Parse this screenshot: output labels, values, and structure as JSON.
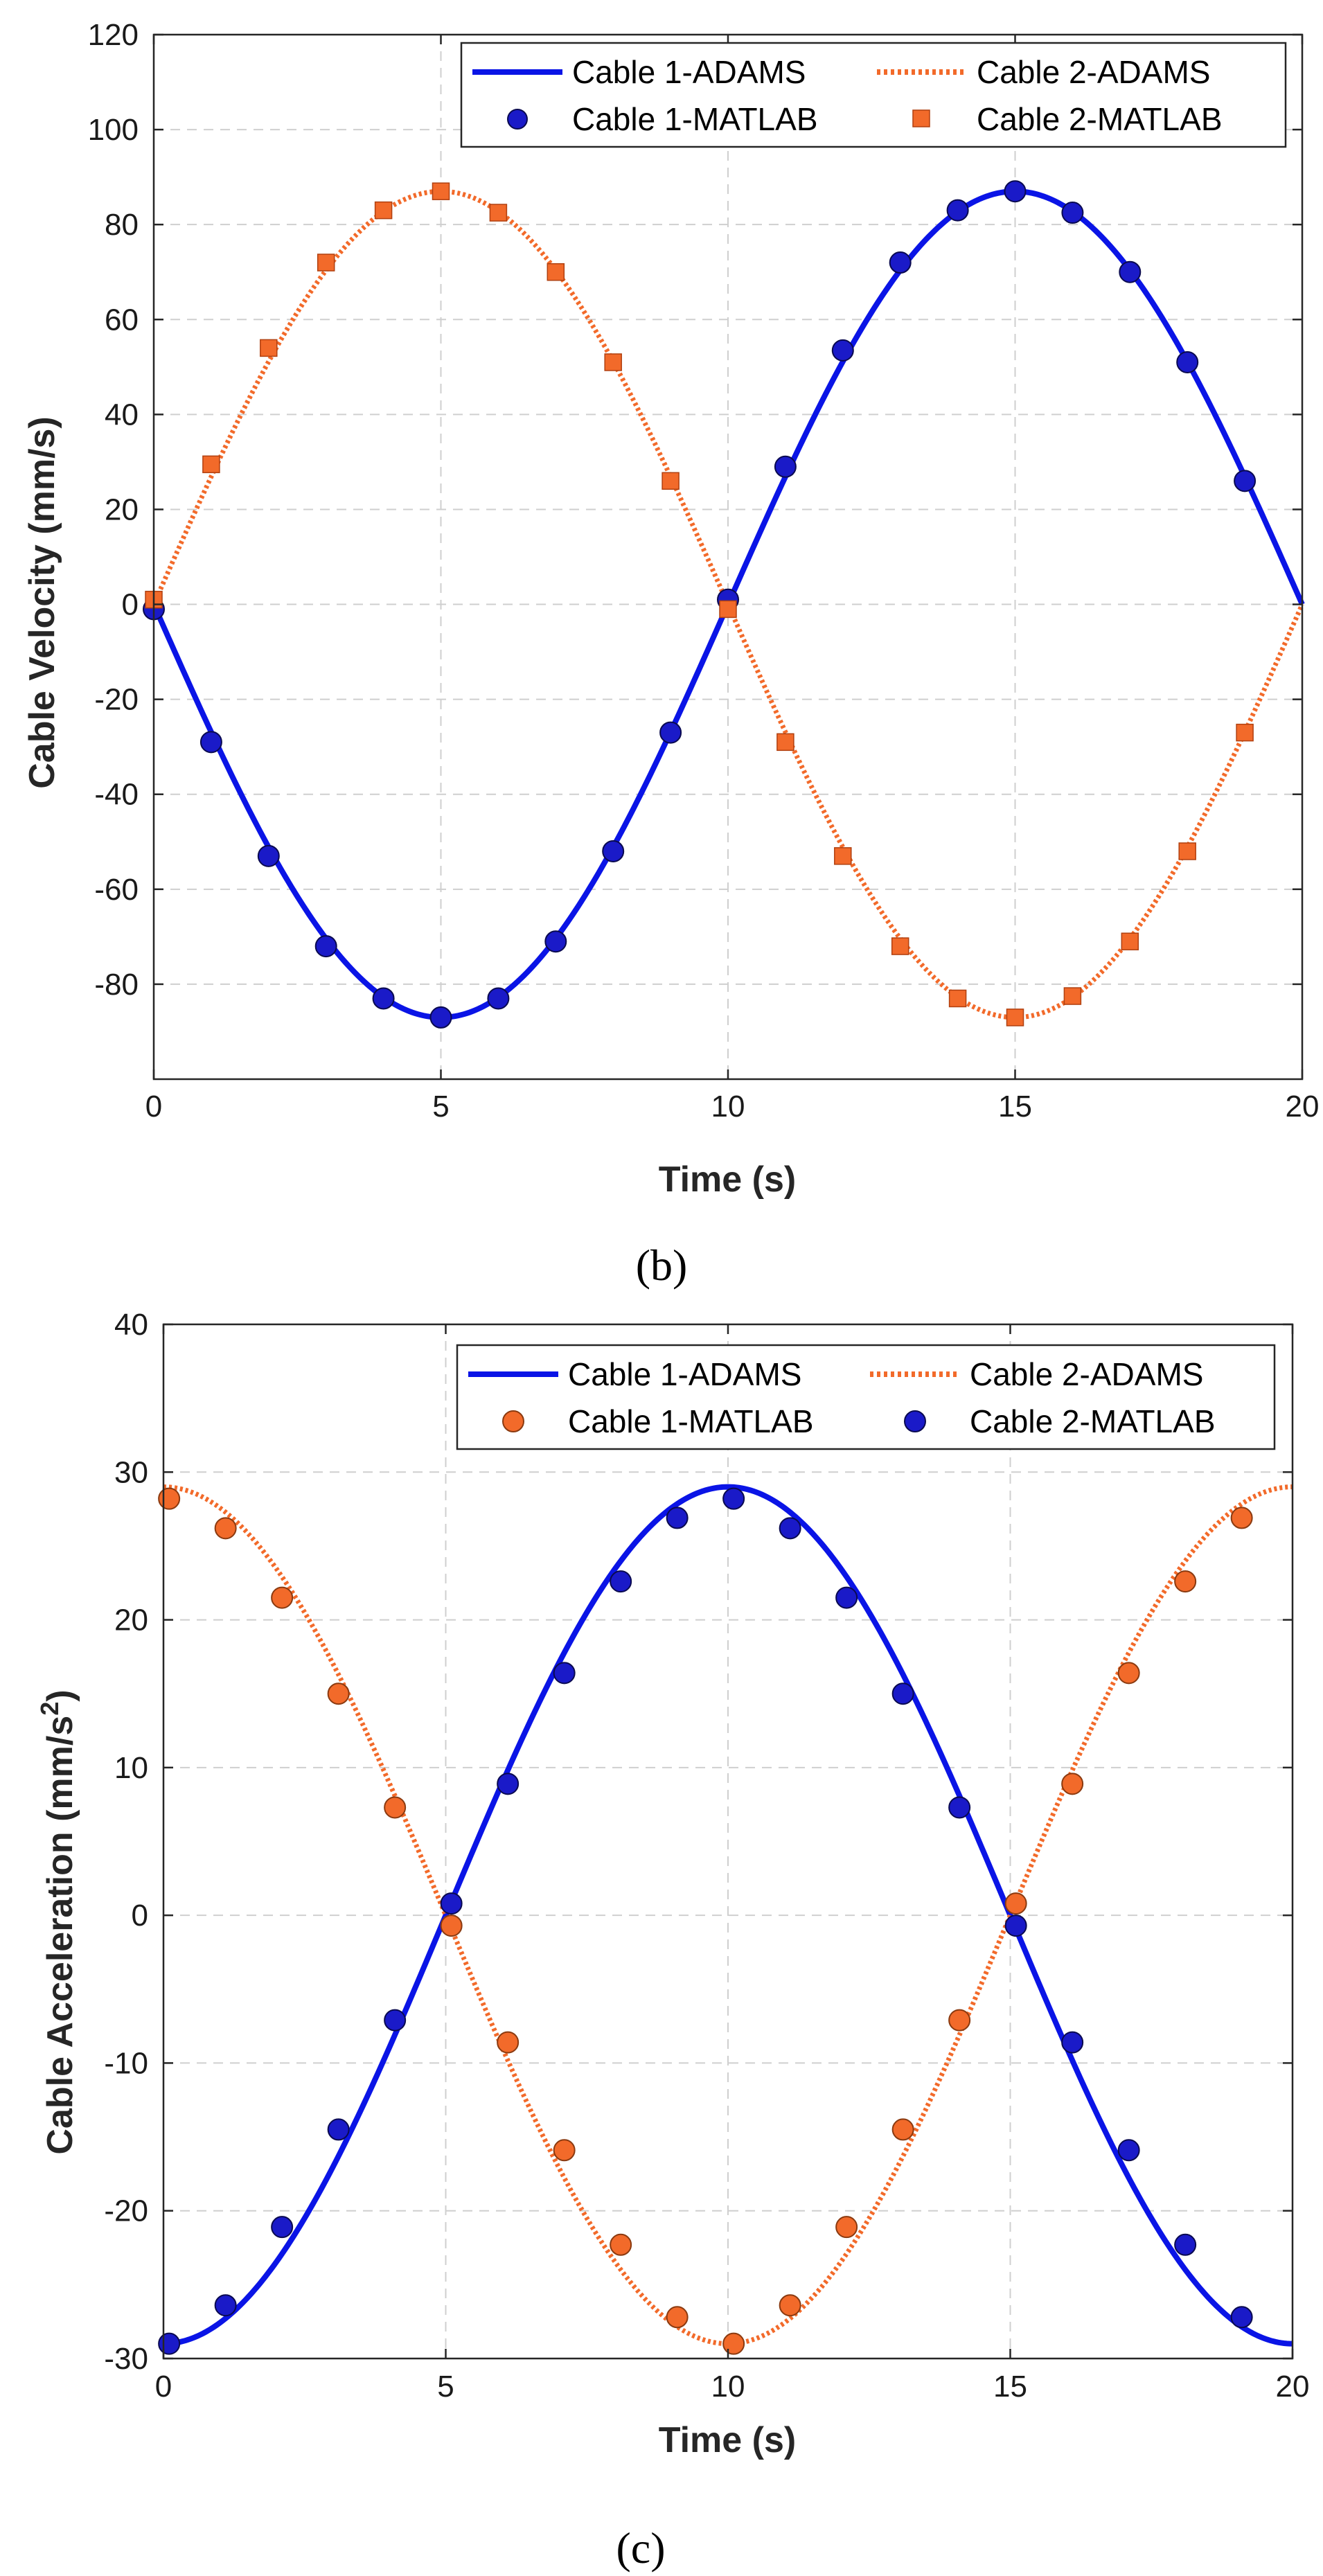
{
  "figure": {
    "caption_b": "(b)",
    "caption_c": "(c)"
  },
  "colors": {
    "blue": "#0a14e6",
    "blue_marker": "#1a1ac8",
    "orange": "#f26a2a",
    "orange_marker": "#f26a2a",
    "marker_edge": "#5a2a10",
    "blue_edge": "#0a0a50"
  },
  "chart_data": [
    {
      "id": "b",
      "type": "line",
      "title": "",
      "xlabel": "Time (s)",
      "ylabel": "Cable Velocity (mm/s)",
      "ylabel_parts": [
        "Cable Velocity (mm/s)"
      ],
      "xlim": [
        0,
        20
      ],
      "ylim": [
        -100,
        120
      ],
      "xticks": [
        0,
        5,
        10,
        15,
        20
      ],
      "xtick_labels": [
        "0",
        "5",
        "10",
        "15",
        "20"
      ],
      "yticks": [
        -80,
        -60,
        -40,
        -20,
        0,
        20,
        40,
        60,
        80,
        100,
        120
      ],
      "ytick_labels": [
        "-80",
        "-60",
        "-40",
        "-20",
        "0",
        "20",
        "40",
        "60",
        "80",
        "100",
        "120"
      ],
      "grid": true,
      "legend_position": "top-right",
      "series": [
        {
          "name": "Cable 1-ADAMS",
          "style": "solid-line",
          "color_key": "blue",
          "function": "velocity1",
          "amplitude": 87
        },
        {
          "name": "Cable 2-ADAMS",
          "style": "dotted-line",
          "color_key": "orange",
          "function": "velocity2",
          "amplitude": 87
        },
        {
          "name": "Cable 1-MATLAB",
          "style": "circle-marker",
          "color_key": "blue_marker",
          "x": [
            0,
            1,
            2,
            3,
            4,
            5,
            6,
            7,
            8,
            9,
            10,
            11,
            12,
            13,
            14,
            15,
            16,
            17,
            18,
            19
          ],
          "y": [
            -1,
            -29,
            -53,
            -72,
            -83,
            -87,
            -83,
            -71,
            -52,
            -27,
            1,
            29,
            53.5,
            72,
            83,
            87,
            82.5,
            70,
            51,
            26
          ]
        },
        {
          "name": "Cable 2-MATLAB",
          "style": "square-marker",
          "color_key": "orange_marker",
          "x": [
            0,
            1,
            2,
            3,
            4,
            5,
            6,
            7,
            8,
            9,
            10,
            11,
            12,
            13,
            14,
            15,
            16,
            17,
            18,
            19
          ],
          "y": [
            1,
            29.5,
            54,
            72,
            83,
            87,
            82.5,
            70,
            51,
            26,
            -1,
            -29,
            -53,
            -72,
            -83,
            -87,
            -82.5,
            -71,
            -52,
            -27
          ]
        }
      ],
      "legend": {
        "row1_left": "Cable 1-ADAMS",
        "row1_right": "Cable 2-ADAMS",
        "row2_left": "Cable 1-MATLAB",
        "row2_right": "Cable 2-MATLAB"
      }
    },
    {
      "id": "c",
      "type": "line",
      "title": "",
      "xlabel": "Time (s)",
      "ylabel_prefix": "Cable Acceleration (mm/s",
      "ylabel_sup": "2",
      "ylabel_suffix": ")",
      "xlim": [
        0,
        20
      ],
      "ylim": [
        -30,
        40
      ],
      "xticks": [
        0,
        5,
        10,
        15,
        20
      ],
      "xtick_labels": [
        "0",
        "5",
        "10",
        "15",
        "20"
      ],
      "yticks": [
        -30,
        -20,
        -10,
        0,
        10,
        20,
        30,
        40
      ],
      "ytick_labels": [
        "-30",
        "-20",
        "-10",
        "0",
        "10",
        "20",
        "30",
        "40"
      ],
      "grid": true,
      "legend_position": "top-right",
      "series": [
        {
          "name": "Cable 1-ADAMS",
          "style": "solid-line",
          "color_key": "blue",
          "function": "accel1",
          "amplitude": 29
        },
        {
          "name": "Cable 2-ADAMS",
          "style": "dotted-line",
          "color_key": "orange",
          "function": "accel2",
          "amplitude": 29
        },
        {
          "name": "Cable 1-MATLAB",
          "style": "circle-marker",
          "color_key": "orange_marker",
          "x": [
            0.1,
            1.1,
            2.1,
            3.1,
            4.1,
            5.1,
            6.1,
            7.1,
            8.1,
            9.1,
            10.1,
            11.1,
            12.1,
            13.1,
            14.1,
            15.1,
            16.1,
            17.1,
            18.1,
            19.1
          ],
          "y": [
            28.2,
            26.2,
            21.5,
            15,
            7.3,
            -0.7,
            -8.6,
            -15.9,
            -22.3,
            -27.2,
            -29,
            -26.4,
            -21.1,
            -14.5,
            -7.1,
            0.8,
            8.9,
            16.4,
            22.6,
            26.9
          ]
        },
        {
          "name": "Cable 2-MATLAB",
          "style": "circle-marker",
          "color_key": "blue_marker",
          "x": [
            0.1,
            1.1,
            2.1,
            3.1,
            4.1,
            5.1,
            6.1,
            7.1,
            8.1,
            9.1,
            10.1,
            11.1,
            12.1,
            13.1,
            14.1,
            15.1,
            16.1,
            17.1,
            18.1,
            19.1
          ],
          "y": [
            -29,
            -26.4,
            -21.1,
            -14.5,
            -7.1,
            0.8,
            8.9,
            16.4,
            22.6,
            26.9,
            28.2,
            26.2,
            21.5,
            15,
            7.3,
            -0.7,
            -8.6,
            -15.9,
            -22.3,
            -27.2
          ]
        }
      ],
      "legend": {
        "row1_left": "Cable 1-ADAMS",
        "row1_right": "Cable 2-ADAMS",
        "row2_left": "Cable 1-MATLAB",
        "row2_right": "Cable 2-MATLAB"
      }
    }
  ]
}
